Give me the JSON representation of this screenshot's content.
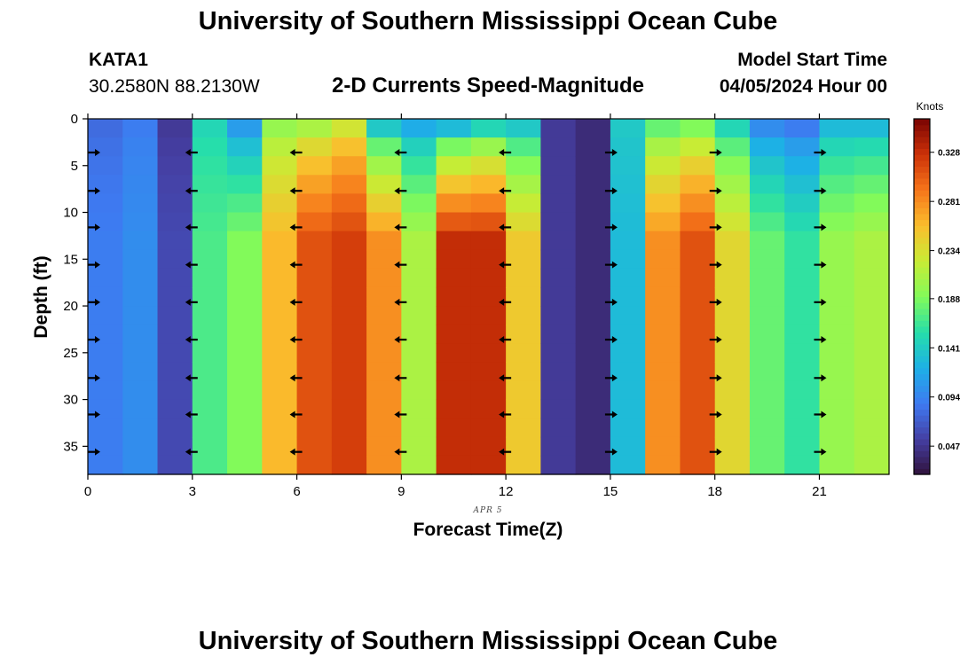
{
  "header": {
    "title": "University of Southern Mississippi Ocean Cube",
    "station_id": "KATA1",
    "coords": "30.2580N  88.2130W",
    "plot_title": "2-D Currents Speed-Magnitude",
    "model_start_label": "Model Start Time",
    "model_start_value": "04/05/2024 Hour 00"
  },
  "footer": {
    "title": "University of Southern Mississippi Ocean Cube"
  },
  "chart_data": {
    "type": "heatmap",
    "title": "2-D Currents Speed-Magnitude",
    "xlabel": "Forecast Time(Z)",
    "ylabel": "Depth (ft)",
    "date_label": "APR 5",
    "xlim": [
      0,
      23
    ],
    "ylim": [
      38,
      0
    ],
    "x_ticks": [
      0,
      3,
      6,
      9,
      12,
      15,
      18,
      21
    ],
    "y_ticks": [
      0,
      5,
      10,
      15,
      20,
      25,
      30,
      35
    ],
    "colorbar": {
      "label": "Knots",
      "range": [
        0.02,
        0.36
      ],
      "ticks": [
        "0.047",
        "0.094",
        "0.141",
        "0.188",
        "0.234",
        "0.281",
        "0.328"
      ]
    },
    "hours": [
      0,
      1,
      2,
      3,
      4,
      5,
      6,
      7,
      8,
      9,
      10,
      11,
      12,
      13,
      14,
      15,
      16,
      17,
      18,
      19,
      20,
      21,
      22
    ],
    "speed_bottom_knots": [
      0.09,
      0.1,
      0.06,
      0.17,
      0.19,
      0.26,
      0.31,
      0.32,
      0.28,
      0.21,
      0.33,
      0.33,
      0.25,
      0.05,
      0.04,
      0.13,
      0.28,
      0.31,
      0.24,
      0.18,
      0.16,
      0.2,
      0.21
    ],
    "speed_top_knots": [
      0.08,
      0.09,
      0.05,
      0.15,
      0.11,
      0.2,
      0.21,
      0.23,
      0.14,
      0.12,
      0.13,
      0.15,
      0.14,
      0.05,
      0.04,
      0.14,
      0.18,
      0.19,
      0.15,
      0.1,
      0.09,
      0.13,
      0.13
    ],
    "vector_hours": [
      0,
      3,
      6,
      9,
      12,
      15,
      18,
      21
    ],
    "vector_depths_ft": [
      3.6,
      7.7,
      11.6,
      15.6,
      19.6,
      23.6,
      27.7,
      31.6,
      35.6
    ],
    "vector_direction": [
      "right",
      "left",
      "left",
      "left",
      "left",
      "right",
      "right",
      "right"
    ]
  }
}
